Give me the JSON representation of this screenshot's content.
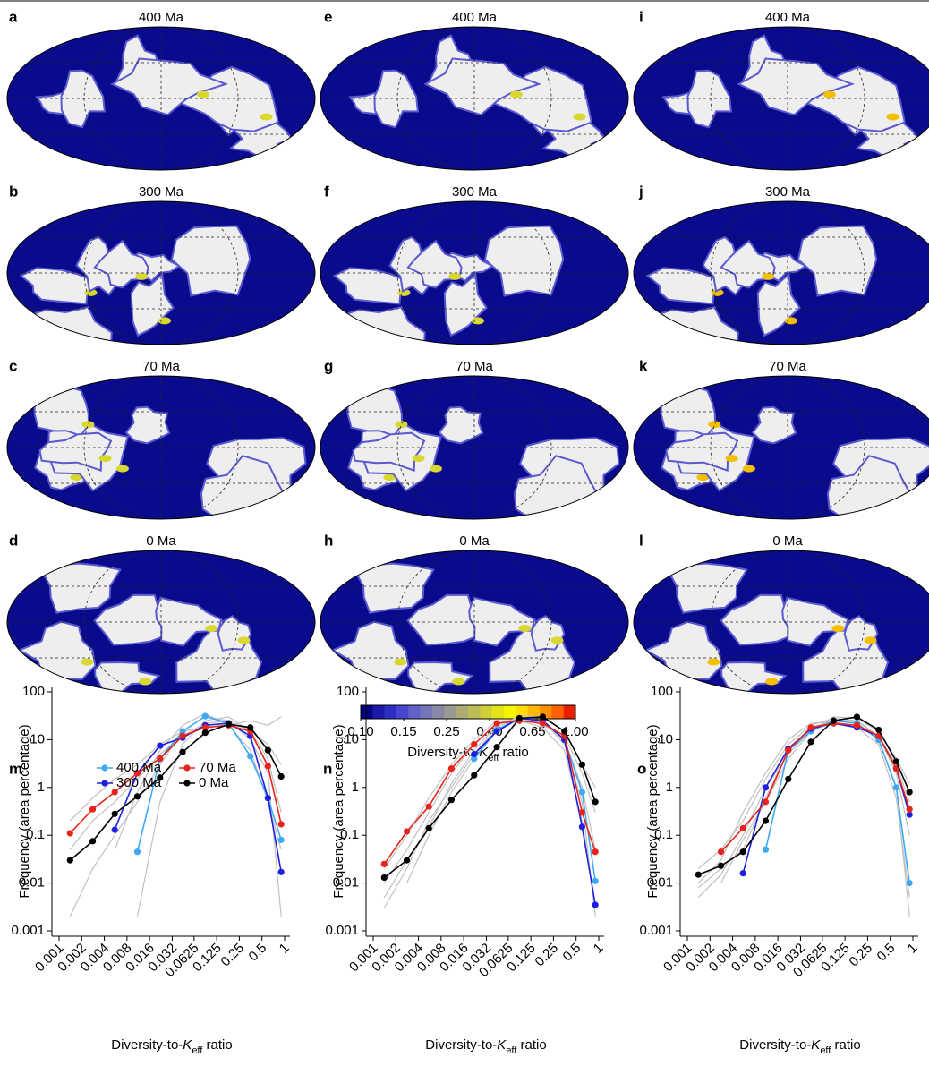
{
  "maps": [
    {
      "label": "a",
      "title": "400 Ma"
    },
    {
      "label": "b",
      "title": "300 Ma"
    },
    {
      "label": "c",
      "title": "70 Ma"
    },
    {
      "label": "d",
      "title": "0 Ma"
    },
    {
      "label": "e",
      "title": "400 Ma"
    },
    {
      "label": "f",
      "title": "300 Ma"
    },
    {
      "label": "g",
      "title": "70 Ma"
    },
    {
      "label": "h",
      "title": "0 Ma"
    },
    {
      "label": "i",
      "title": "400 Ma"
    },
    {
      "label": "j",
      "title": "300 Ma"
    },
    {
      "label": "k",
      "title": "70 Ma"
    },
    {
      "label": "l",
      "title": "0 Ma"
    }
  ],
  "colorbar": {
    "colors": [
      "#000080",
      "#1a1aa6",
      "#2e2ec4",
      "#4747d1",
      "#6161c9",
      "#7575b8",
      "#8888a6",
      "#9a9a92",
      "#acac73",
      "#bdbd55",
      "#cfcf36",
      "#e3e31a",
      "#f5f500",
      "#ffdd00",
      "#ffb800",
      "#ff9000",
      "#ff6000",
      "#e82000"
    ],
    "ticks": [
      {
        "value": 0.1,
        "label": "0.10"
      },
      {
        "value": 0.15,
        "label": "0.15"
      },
      {
        "value": 0.25,
        "label": "0.25"
      },
      {
        "value": 0.4,
        "label": "0.40"
      },
      {
        "value": 0.65,
        "label": "0.65"
      },
      {
        "value": 1,
        "label": "1.00"
      }
    ],
    "label": {
      "text": "Diversity-to-",
      "italic": "K",
      "sub": "eff",
      "rest": " ratio"
    }
  },
  "chart_data": [
    {
      "type": "line",
      "label": "m",
      "log": true,
      "legend": "upper left",
      "xlabel": {
        "text": "Diversity-to-",
        "italic": "K",
        "sub": "eff",
        "rest": " ratio"
      },
      "ylabel": "Frequency (area percentage)",
      "x": [
        0.0014,
        0.0028,
        0.0055,
        0.011,
        0.022,
        0.044,
        0.088,
        0.18,
        0.35,
        0.6,
        0.9
      ],
      "xlim": [
        0.001,
        1
      ],
      "ylim": [
        0.001,
        100
      ],
      "xticks": [
        0.001,
        0.002,
        0.004,
        0.008,
        0.016,
        0.032,
        0.0625,
        0.125,
        0.25,
        0.5,
        1
      ],
      "yticks": [
        0.001,
        0.01,
        0.1,
        1,
        10,
        100
      ],
      "series": [
        {
          "color": "#c0c0c0",
          "values": [
            0.002,
            0.02,
            0.1,
            0.5,
            3,
            15,
            30,
            25,
            10,
            2,
            0.002
          ]
        },
        {
          "color": "#c0c0c0",
          "values": [
            null,
            null,
            0.05,
            0.8,
            6,
            20,
            35,
            20,
            6,
            0.5,
            0.05
          ]
        },
        {
          "color": "#c0c0c0",
          "values": [
            0.2,
            0.6,
            1.5,
            3,
            8,
            15,
            18,
            20,
            25,
            20,
            30
          ]
        },
        {
          "color": "#c0c0c0",
          "values": [
            null,
            null,
            null,
            0.002,
            0.5,
            8,
            25,
            30,
            15,
            8,
            3
          ]
        },
        {
          "color": "#c0c0c0",
          "values": [
            0.05,
            0.2,
            0.5,
            1.5,
            5,
            12,
            22,
            25,
            15,
            4,
            0.3
          ]
        },
        {
          "name": "400 Ma",
          "color": "#3fa9f5",
          "values": [
            null,
            null,
            null,
            0.045,
            4,
            15,
            31,
            22,
            4.5,
            0.6,
            0.08
          ]
        },
        {
          "name": "300 Ma",
          "color": "#1f1fe0",
          "values": [
            null,
            null,
            0.13,
            2,
            7.5,
            11,
            20,
            22,
            12,
            0.6,
            0.017
          ]
        },
        {
          "name": "70 Ma",
          "color": "#e8231b",
          "values": [
            0.11,
            0.35,
            0.8,
            2,
            4,
            12,
            18,
            20,
            15,
            2.8,
            0.17
          ]
        },
        {
          "name": "0 Ma",
          "color": "#000000",
          "values": [
            0.03,
            0.075,
            0.28,
            0.65,
            1.6,
            5.5,
            14,
            21,
            18,
            6,
            1.7
          ]
        }
      ]
    },
    {
      "type": "line",
      "label": "n",
      "log": true,
      "xlabel": {
        "text": "Diversity-to-",
        "italic": "K",
        "sub": "eff",
        "rest": " ratio"
      },
      "ylabel": "Frequency (area percentage)",
      "x": [
        0.0014,
        0.0028,
        0.0055,
        0.011,
        0.022,
        0.044,
        0.088,
        0.18,
        0.35,
        0.6,
        0.9
      ],
      "xlim": [
        0.001,
        1
      ],
      "ylim": [
        0.001,
        100
      ],
      "xticks": [
        0.001,
        0.002,
        0.004,
        0.008,
        0.016,
        0.032,
        0.0625,
        0.125,
        0.25,
        0.5,
        1
      ],
      "yticks": [
        0.001,
        0.01,
        0.1,
        1,
        10,
        100
      ],
      "series": [
        {
          "color": "#c0c0c0",
          "values": [
            0.003,
            0.02,
            0.2,
            1,
            5,
            18,
            30,
            25,
            8,
            0.5,
            0.002
          ]
        },
        {
          "color": "#c0c0c0",
          "values": [
            0.01,
            0.05,
            0.3,
            2,
            8,
            22,
            28,
            20,
            12,
            2,
            0.3
          ]
        },
        {
          "color": "#c0c0c0",
          "values": [
            null,
            0.01,
            0.1,
            0.8,
            4,
            15,
            32,
            30,
            15,
            3,
            1
          ]
        },
        {
          "color": "#c0c0c0",
          "values": [
            0.02,
            0.1,
            0.6,
            3,
            10,
            25,
            25,
            18,
            6,
            0.2,
            0.003
          ]
        },
        {
          "color": "#c0c0c0",
          "values": [
            0.005,
            0.03,
            0.15,
            1.2,
            6,
            20,
            30,
            22,
            10,
            1,
            0.05
          ]
        },
        {
          "color": "#3fa9f5",
          "values": [
            null,
            null,
            null,
            null,
            4,
            16,
            28,
            25,
            10,
            0.8,
            0.011
          ]
        },
        {
          "color": "#1f1fe0",
          "values": [
            null,
            null,
            null,
            null,
            5,
            15,
            28,
            25,
            10,
            0.15,
            0.0035
          ]
        },
        {
          "color": "#e8231b",
          "values": [
            0.025,
            0.12,
            0.4,
            2.5,
            8,
            22,
            25,
            22,
            12,
            0.3,
            0.045
          ]
        },
        {
          "color": "#000000",
          "values": [
            0.013,
            0.03,
            0.14,
            0.55,
            1.8,
            7,
            28,
            30,
            15,
            3,
            0.5
          ]
        }
      ]
    },
    {
      "type": "line",
      "label": "o",
      "log": true,
      "xlabel": {
        "text": "Diversity-to-",
        "italic": "K",
        "sub": "eff",
        "rest": " ratio"
      },
      "ylabel": "Frequency (area percentage)",
      "x": [
        0.0014,
        0.0028,
        0.0055,
        0.011,
        0.022,
        0.044,
        0.088,
        0.18,
        0.35,
        0.6,
        0.9
      ],
      "xlim": [
        0.001,
        1
      ],
      "ylim": [
        0.001,
        100
      ],
      "xticks": [
        0.001,
        0.002,
        0.004,
        0.008,
        0.016,
        0.032,
        0.0625,
        0.125,
        0.25,
        0.5,
        1
      ],
      "yticks": [
        0.001,
        0.01,
        0.1,
        1,
        10,
        100
      ],
      "series": [
        {
          "color": "#c0c0c0",
          "values": [
            0.008,
            0.02,
            0.05,
            0.6,
            6,
            18,
            25,
            22,
            10,
            1,
            0.002
          ]
        },
        {
          "color": "#c0c0c0",
          "values": [
            0.02,
            0.05,
            0.2,
            1.5,
            8,
            20,
            28,
            25,
            12,
            3,
            0.5
          ]
        },
        {
          "color": "#c0c0c0",
          "values": [
            null,
            0.01,
            0.08,
            0.5,
            4,
            15,
            30,
            28,
            15,
            4,
            1.2
          ]
        },
        {
          "color": "#c0c0c0",
          "values": [
            0.01,
            0.03,
            0.3,
            2,
            10,
            22,
            24,
            18,
            8,
            0.6,
            0.005
          ]
        },
        {
          "color": "#c0c0c0",
          "values": [
            0.005,
            0.015,
            0.1,
            1,
            5,
            16,
            26,
            24,
            12,
            2,
            0.1
          ]
        },
        {
          "color": "#3fa9f5",
          "values": [
            null,
            null,
            null,
            0.05,
            6,
            15,
            25,
            22,
            10,
            1,
            0.01
          ]
        },
        {
          "color": "#1f1fe0",
          "values": [
            null,
            null,
            0.016,
            1,
            6.5,
            17,
            22,
            18,
            12,
            2.5,
            0.27
          ]
        },
        {
          "color": "#e8231b",
          "values": [
            null,
            0.045,
            0.14,
            0.5,
            6,
            18,
            22,
            20,
            12,
            2.5,
            0.35
          ]
        },
        {
          "color": "#000000",
          "values": [
            0.015,
            0.023,
            0.045,
            0.2,
            1.5,
            9,
            25,
            30,
            16,
            3.5,
            0.8
          ]
        }
      ]
    }
  ]
}
